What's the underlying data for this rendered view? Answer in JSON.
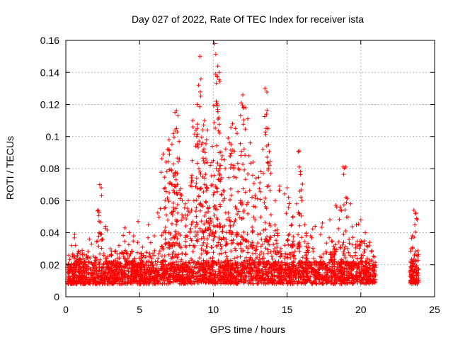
{
  "chart_data": {
    "type": "scatter",
    "title": "Day 027 of 2022, Rate Of TEC Index for receiver ista",
    "xlabel": "GPS time / hours",
    "ylabel": "ROTI / TECUs",
    "xlim": [
      0,
      25
    ],
    "ylim": [
      0,
      0.16
    ],
    "xticks": [
      0,
      5,
      10,
      15,
      20,
      25
    ],
    "xtick_labels": [
      "0",
      "5",
      "10",
      "15",
      "20",
      "25"
    ],
    "yticks": [
      0,
      0.02,
      0.04,
      0.06,
      0.08,
      0.1,
      0.12,
      0.14,
      0.16
    ],
    "ytick_labels": [
      "0",
      "0.02",
      "0.04",
      "0.06",
      "0.08",
      "0.1",
      "0.12",
      "0.14",
      "0.16"
    ],
    "grid": true,
    "marker": "+",
    "colors": {
      "marker": "#ff0000",
      "grid": "#a0a0a0",
      "frame": "#000000"
    },
    "data_gap": [
      21.0,
      23.3
    ],
    "series": [
      {
        "x": [
          0.2,
          0.4,
          0.6,
          0.9,
          1.6,
          2.2,
          2.3,
          2.4,
          2.7,
          3.0,
          3.6,
          4.0,
          4.3,
          4.6,
          4.9,
          5.2,
          5.6,
          6.0,
          6.4,
          6.6,
          6.8,
          6.9,
          7.0,
          7.2,
          7.3,
          7.4,
          7.5,
          7.6,
          7.7,
          7.9,
          8.1,
          8.3,
          8.6,
          8.9,
          9.0,
          9.1,
          9.2,
          9.3,
          9.4,
          9.5,
          9.6,
          9.8,
          10.0,
          10.1,
          10.2,
          10.3,
          10.4,
          10.5,
          10.6,
          10.8,
          11.0,
          11.2,
          11.3,
          11.5,
          11.7,
          11.9,
          12.0,
          12.2,
          12.5,
          12.7,
          12.9,
          13.2,
          13.5,
          13.6,
          13.7,
          13.9,
          14.2,
          14.5,
          15.0,
          15.1,
          15.4,
          15.8,
          15.9,
          16.0,
          16.2,
          16.6,
          16.9,
          17.4,
          17.9,
          18.3,
          18.6,
          18.8,
          19.0,
          19.3,
          19.7,
          20.0,
          20.3,
          20.6,
          23.4,
          23.5,
          23.6,
          23.7,
          23.8
        ],
        "y": [
          0.026,
          0.032,
          0.039,
          0.028,
          0.036,
          0.054,
          0.07,
          0.068,
          0.044,
          0.03,
          0.032,
          0.043,
          0.04,
          0.038,
          0.047,
          0.031,
          0.045,
          0.038,
          0.055,
          0.089,
          0.084,
          0.092,
          0.098,
          0.07,
          0.102,
          0.104,
          0.116,
          0.113,
          0.086,
          0.06,
          0.058,
          0.06,
          0.11,
          0.12,
          0.132,
          0.15,
          0.095,
          0.091,
          0.11,
          0.086,
          0.104,
          0.082,
          0.085,
          0.158,
          0.122,
          0.144,
          0.14,
          0.082,
          0.088,
          0.08,
          0.099,
          0.095,
          0.108,
          0.105,
          0.08,
          0.121,
          0.126,
          0.118,
          0.096,
          0.084,
          0.074,
          0.078,
          0.13,
          0.114,
          0.105,
          0.077,
          0.06,
          0.069,
          0.068,
          0.062,
          0.05,
          0.091,
          0.078,
          0.06,
          0.045,
          0.038,
          0.044,
          0.046,
          0.048,
          0.057,
          0.056,
          0.081,
          0.062,
          0.058,
          0.045,
          0.048,
          0.04,
          0.034,
          0.03,
          0.038,
          0.054,
          0.052,
          0.026
        ],
        "dense_band": {
          "min": 0.003,
          "typical_max": 0.028
        }
      }
    ]
  }
}
